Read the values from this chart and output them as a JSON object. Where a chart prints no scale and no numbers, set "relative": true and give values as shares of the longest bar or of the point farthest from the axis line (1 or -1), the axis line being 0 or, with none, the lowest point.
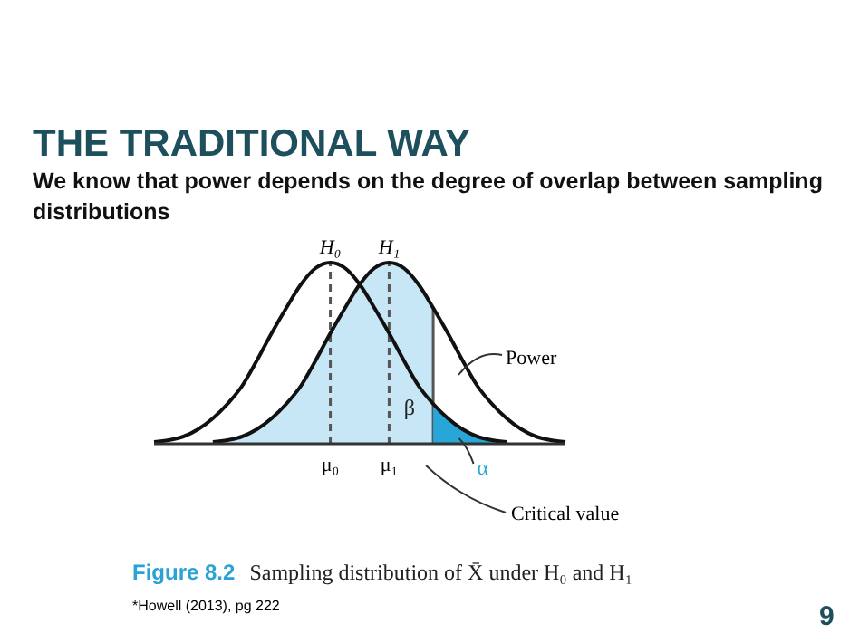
{
  "chart_data": {
    "type": "line",
    "relative": true,
    "title": "THE TRADITIONAL WAY",
    "subtitle": "We know that power depends on the degree of overlap between sampling distributions",
    "categories": [
      null,
      null,
      null,
      null,
      null,
      null,
      null,
      null,
      null,
      null,
      null,
      null,
      "μ₀",
      null,
      null,
      null,
      "μ₁",
      null,
      null,
      null,
      null,
      null,
      null,
      null,
      null,
      null,
      null,
      null,
      null
    ],
    "series": [
      {
        "type": "area",
        "name": "β",
        "color": "#c8e7f6",
        "values": [
          null,
          null,
          null,
          null,
          0.01,
          0.02,
          0.04,
          0.08,
          0.14,
          0.22,
          0.32,
          0.46,
          0.61,
          0.75,
          0.88,
          0.97,
          1,
          0.97,
          0.88,
          0.75,
          null,
          null,
          null,
          null,
          null,
          null,
          null,
          null,
          null
        ]
      },
      {
        "type": "area",
        "name": "α",
        "color": "#29a6d8",
        "values": [
          null,
          null,
          null,
          null,
          null,
          null,
          null,
          null,
          null,
          null,
          null,
          null,
          null,
          null,
          null,
          null,
          null,
          null,
          null,
          0.22,
          0.14,
          0.08,
          0.04,
          0.02,
          0.01,
          null,
          null,
          null,
          null
        ]
      },
      {
        "name": "H₀",
        "color": "#111111",
        "values": [
          0.01,
          0.02,
          0.04,
          0.08,
          0.14,
          0.22,
          0.32,
          0.46,
          0.61,
          0.75,
          0.88,
          0.97,
          1,
          0.97,
          0.88,
          0.75,
          0.61,
          0.46,
          0.32,
          0.22,
          0.14,
          0.08,
          0.04,
          0.02,
          0.01,
          null,
          null,
          null,
          null
        ]
      },
      {
        "name": "H₁",
        "color": "#111111",
        "values": [
          null,
          null,
          null,
          null,
          0.01,
          0.02,
          0.04,
          0.08,
          0.14,
          0.22,
          0.32,
          0.46,
          0.61,
          0.75,
          0.88,
          0.97,
          1,
          0.97,
          0.88,
          0.75,
          0.61,
          0.46,
          0.32,
          0.22,
          0.14,
          0.08,
          0.04,
          0.02,
          0.01
        ]
      }
    ],
    "grid": "x",
    "annotations": [
      "Power",
      "Critical value",
      "Figure 8.2  Sampling distribution of X̄ under H₀ and H₁",
      "*Howell (2013), pg 222",
      "9"
    ],
    "line_style": "solid"
  }
}
